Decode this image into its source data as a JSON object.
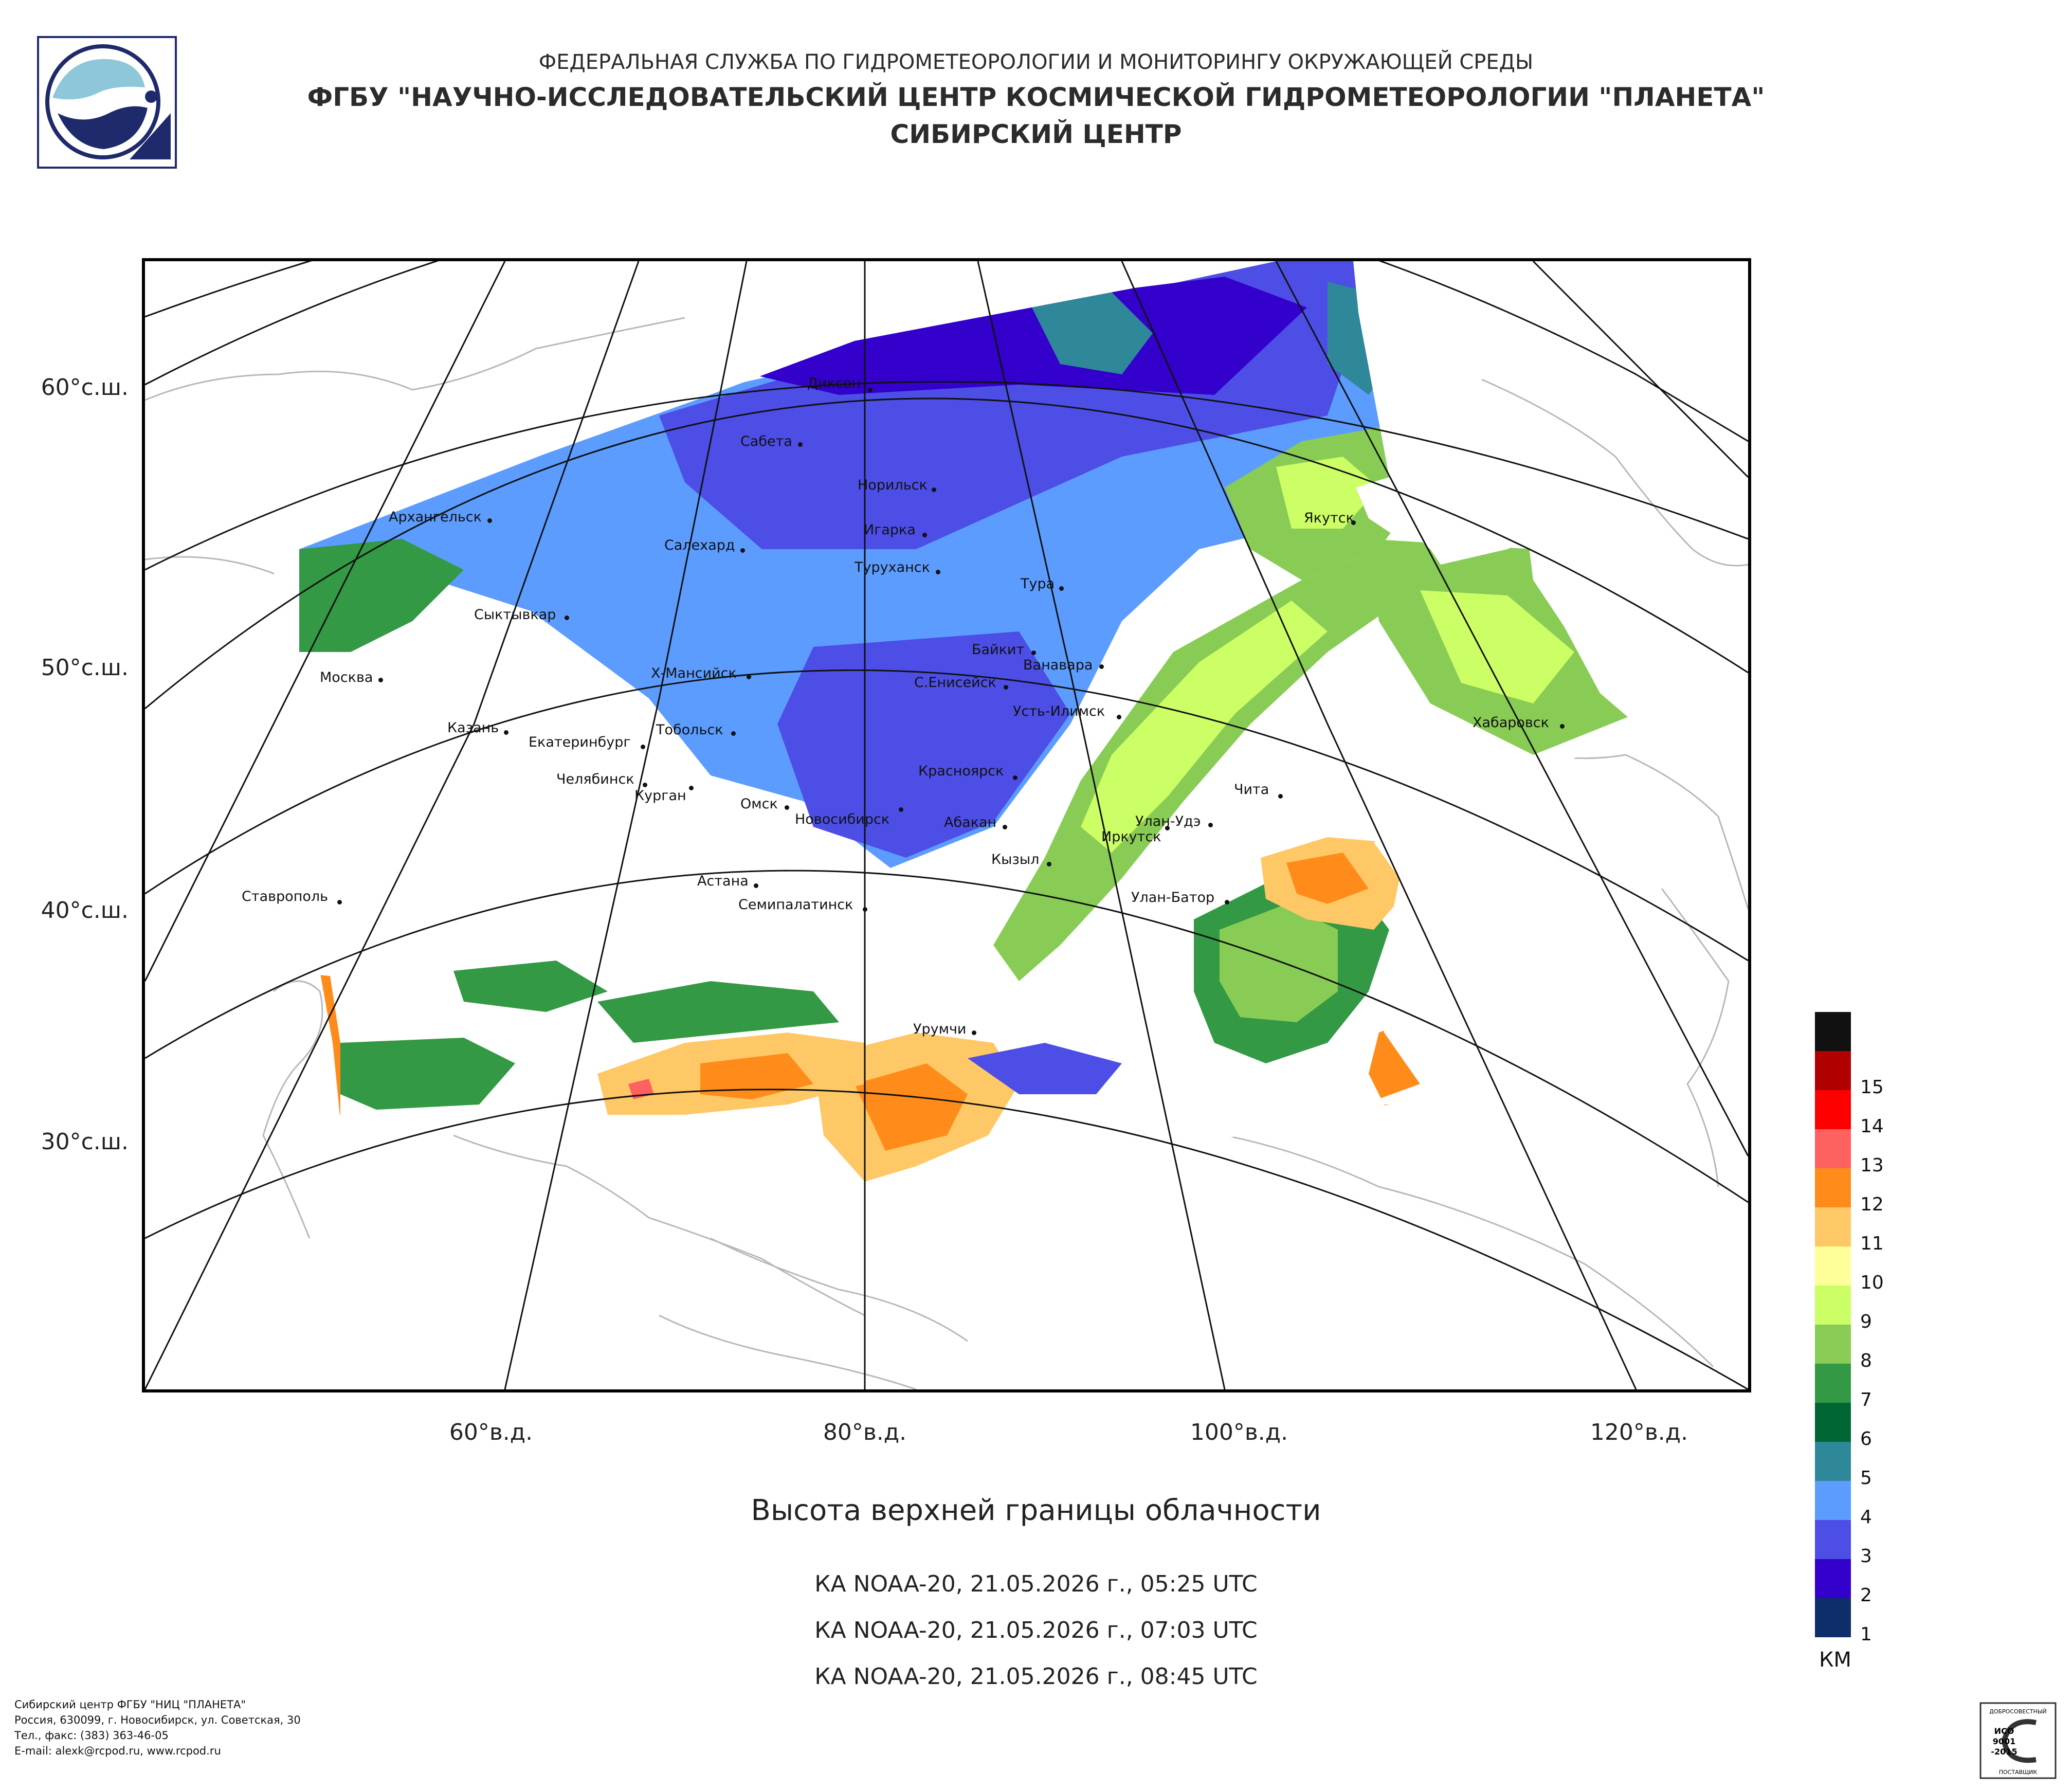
{
  "header": {
    "line1": "ФЕДЕРАЛЬНАЯ СЛУЖБА ПО ГИДРОМЕТЕОРОЛОГИИ И МОНИТОРИНГУ ОКРУЖАЮЩЕЙ СРЕДЫ",
    "line2": "ФГБУ \"НАУЧНО-ИССЛЕДОВАТЕЛЬСКИЙ ЦЕНТР КОСМИЧЕСКОЙ ГИДРОМЕТЕОРОЛОГИИ \"ПЛАНЕТА\"",
    "line3": "СИБИРСКИЙ ЦЕНТР"
  },
  "map": {
    "latitudes": [
      "60°с.ш.",
      "50°с.ш.",
      "40°с.ш.",
      "30°с.ш."
    ],
    "longitudes": [
      "60°в.д.",
      "80°в.д.",
      "100°в.д.",
      "120°в.д."
    ],
    "cities": [
      "Диксон",
      "Сабета",
      "Норильск",
      "Архангельск",
      "Салехард",
      "Игарка",
      "Туруханск",
      "Якутск",
      "Тура",
      "Сыктывкар",
      "Байкит",
      "Ванавара",
      "Москва",
      "Х-Мансийск",
      "С.Енисейск",
      "Усть-Илимск",
      "Хабаровск",
      "Казань",
      "Тобольск",
      "Екатеринбург",
      "Красноярск",
      "Челябинск",
      "Курган",
      "Чита",
      "Омск",
      "Новосибирск",
      "Абакан",
      "Улан-Удэ",
      "Иркутск",
      "Кызыл",
      "Астана",
      "Ставрополь",
      "Семипалатинск",
      "Улан-Батор",
      "Урумчи"
    ]
  },
  "title": "Высота верхней границы облачности",
  "passes": [
    "КА NOAA-20, 21.05.2026 г., 05:25 UTC",
    "КА NOAA-20, 21.05.2026 г., 07:03 UTC",
    "КА NOAA-20, 21.05.2026 г., 08:45 UTC"
  ],
  "legend": {
    "unit": "КМ",
    "levels": [
      {
        "label": "",
        "color": "#111111"
      },
      {
        "label": "15",
        "color": "#b00000"
      },
      {
        "label": "14",
        "color": "#ff0000"
      },
      {
        "label": "13",
        "color": "#ff6060"
      },
      {
        "label": "12",
        "color": "#ff8c1a"
      },
      {
        "label": "11",
        "color": "#ffc866"
      },
      {
        "label": "10",
        "color": "#ffff99"
      },
      {
        "label": "9",
        "color": "#ccff66"
      },
      {
        "label": "8",
        "color": "#88cc55"
      },
      {
        "label": "7",
        "color": "#339944"
      },
      {
        "label": "6",
        "color": "#006633"
      },
      {
        "label": "5",
        "color": "#2e8899"
      },
      {
        "label": "4",
        "color": "#5c9cff"
      },
      {
        "label": "3",
        "color": "#4d4ee6"
      },
      {
        "label": "2",
        "color": "#3300cc"
      },
      {
        "label": "1",
        "color": "#0d2d6b"
      }
    ]
  },
  "footer": [
    "Сибирский центр ФГБУ \"НИЦ \"ПЛАНЕТА\"",
    "Россия, 630099, г. Новосибирск, ул. Советская, 30",
    "Тел., факс: (383) 363-46-05",
    "E-mail: alexk@rcpod.ru, www.rcpod.ru"
  ],
  "cert": {
    "top": "ДОБРОСОВЕСТНЫЙ",
    "mid1": "ИСО",
    "mid2": "9001",
    "mid3": "-2015",
    "bottom": "ПОСТАВЩИК"
  }
}
